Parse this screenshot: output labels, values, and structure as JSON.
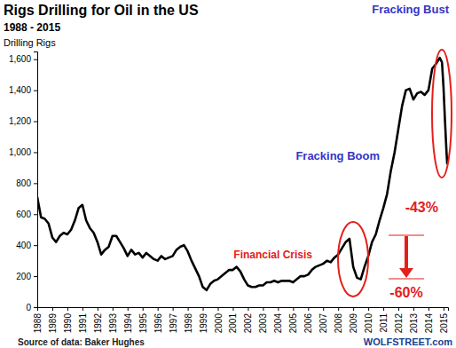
{
  "chart_data": {
    "type": "line",
    "title": "Rigs Drilling for Oil in the US",
    "subtitle": "1988 - 2015",
    "y_label": "Drilling Rigs",
    "source": "Source of data: Baker Hughes",
    "watermark": "WOLFSTREET.com",
    "color": "#000000",
    "grid": false,
    "x": [
      1988,
      1988.25,
      1988.5,
      1988.75,
      1989,
      1989.25,
      1989.5,
      1989.75,
      1990,
      1990.25,
      1990.5,
      1990.75,
      1991,
      1991.25,
      1991.5,
      1991.75,
      1992,
      1992.25,
      1992.5,
      1992.75,
      1993,
      1993.25,
      1993.5,
      1993.75,
      1994,
      1994.25,
      1994.5,
      1994.75,
      1995,
      1995.25,
      1995.5,
      1995.75,
      1996,
      1996.25,
      1996.5,
      1996.75,
      1997,
      1997.25,
      1997.5,
      1997.75,
      1998,
      1998.25,
      1998.5,
      1998.75,
      1999,
      1999.25,
      1999.5,
      1999.75,
      2000,
      2000.25,
      2000.5,
      2000.75,
      2001,
      2001.25,
      2001.5,
      2001.75,
      2002,
      2002.25,
      2002.5,
      2002.75,
      2003,
      2003.25,
      2003.5,
      2003.75,
      2004,
      2004.25,
      2004.5,
      2004.75,
      2005,
      2005.25,
      2005.5,
      2005.75,
      2006,
      2006.25,
      2006.5,
      2006.75,
      2007,
      2007.25,
      2007.5,
      2007.75,
      2008,
      2008.25,
      2008.5,
      2008.75,
      2009,
      2009.25,
      2009.5,
      2009.75,
      2010,
      2010.25,
      2010.5,
      2010.75,
      2011,
      2011.25,
      2011.5,
      2011.75,
      2012,
      2012.25,
      2012.5,
      2012.75,
      2013,
      2013.25,
      2013.5,
      2013.75,
      2014,
      2014.25,
      2014.5,
      2014.75,
      2014.9,
      2015,
      2015.1,
      2015.2,
      2015.25
    ],
    "values": [
      710,
      580,
      570,
      540,
      450,
      420,
      460,
      480,
      470,
      500,
      560,
      640,
      660,
      560,
      510,
      480,
      420,
      340,
      370,
      390,
      460,
      460,
      420,
      380,
      330,
      370,
      340,
      350,
      320,
      350,
      330,
      310,
      300,
      330,
      310,
      320,
      330,
      370,
      390,
      400,
      360,
      300,
      250,
      200,
      130,
      110,
      150,
      170,
      180,
      200,
      220,
      240,
      240,
      260,
      230,
      180,
      140,
      130,
      130,
      140,
      140,
      160,
      160,
      170,
      160,
      170,
      170,
      170,
      160,
      180,
      200,
      200,
      210,
      240,
      260,
      270,
      280,
      300,
      290,
      320,
      340,
      380,
      420,
      442,
      260,
      190,
      180,
      260,
      330,
      420,
      470,
      560,
      640,
      730,
      880,
      1000,
      1150,
      1300,
      1400,
      1410,
      1340,
      1380,
      1390,
      1370,
      1400,
      1540,
      1570,
      1609,
      1580,
      1420,
      1200,
      1000,
      922
    ],
    "xlim": [
      1988,
      2015.3
    ],
    "xticks": [
      1988,
      1989,
      1990,
      1991,
      1992,
      1993,
      1994,
      1995,
      1996,
      1997,
      1998,
      1999,
      2000,
      2001,
      2002,
      2003,
      2004,
      2005,
      2006,
      2007,
      2008,
      2009,
      2010,
      2011,
      2012,
      2013,
      2014,
      2015
    ],
    "ylim": [
      0,
      1650
    ],
    "yticks": [
      0,
      200,
      400,
      600,
      800,
      {
        "value": 1000,
        "label": "1,000"
      },
      {
        "value": 1200,
        "label": "1,200"
      },
      {
        "value": 1400,
        "label": "1,400"
      },
      {
        "value": 1600,
        "label": "1,600"
      }
    ],
    "annotations": [
      {
        "text": "Fracking Bust",
        "color": "#3535c8"
      },
      {
        "text": "Fracking Boom",
        "color": "#3535c8"
      },
      {
        "text": "Financial Crisis",
        "color": "#e3201c"
      },
      {
        "text": "-60%",
        "color": "#e3201c"
      },
      {
        "text": "-43%",
        "color": "#e3201c"
      }
    ]
  }
}
